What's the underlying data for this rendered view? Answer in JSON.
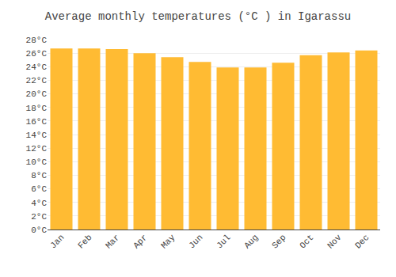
{
  "chart_data": {
    "type": "bar",
    "title": "Average monthly temperatures (°C ) in Igarassu",
    "categories": [
      "Jan",
      "Feb",
      "Mar",
      "Apr",
      "May",
      "Jun",
      "Jul",
      "Aug",
      "Sep",
      "Oct",
      "Nov",
      "Dec"
    ],
    "values": [
      26.7,
      26.7,
      26.6,
      26.0,
      25.4,
      24.7,
      23.9,
      23.9,
      24.6,
      25.7,
      26.1,
      26.4
    ],
    "color": "#FFBB33",
    "ylim": [
      0,
      28
    ],
    "yticks": [
      {
        "value": 0,
        "label": "0°C"
      },
      {
        "value": 2,
        "label": "2°C"
      },
      {
        "value": 4,
        "label": "4°C"
      },
      {
        "value": 6,
        "label": "6°C"
      },
      {
        "value": 8,
        "label": "8°C"
      },
      {
        "value": 10,
        "label": "10°C"
      },
      {
        "value": 12,
        "label": "12°C"
      },
      {
        "value": 14,
        "label": "14°C"
      },
      {
        "value": 16,
        "label": "16°C"
      },
      {
        "value": 18,
        "label": "18°C"
      },
      {
        "value": 20,
        "label": "20°C"
      },
      {
        "value": 22,
        "label": "22°C"
      },
      {
        "value": 24,
        "label": "24°C"
      },
      {
        "value": 26,
        "label": "26°C"
      },
      {
        "value": 28,
        "label": "28°C"
      }
    ],
    "grid": true
  }
}
